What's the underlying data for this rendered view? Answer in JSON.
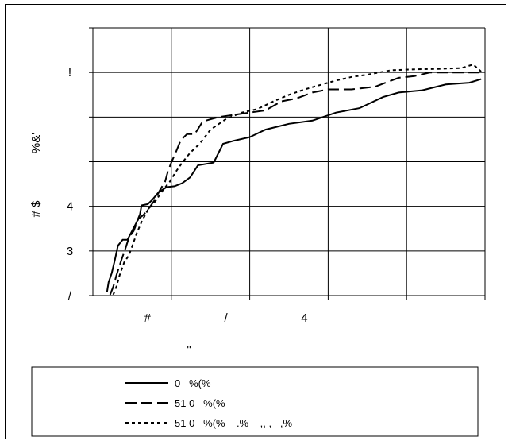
{
  "chart_data": {
    "type": "line",
    "title": "",
    "xlabel": "\"",
    "ylabel": "# $",
    "ylabel_secondary": "%&'",
    "x_ticks": [
      {
        "value": 1,
        "label": "#"
      },
      {
        "value": 2,
        "label": "/"
      },
      {
        "value": 3,
        "label": "4"
      },
      {
        "value": 4,
        "label": ""
      },
      {
        "value": 5,
        "label": ""
      }
    ],
    "y_ticks": [
      {
        "value": 0,
        "label": "/"
      },
      {
        "value": 1,
        "label": "3"
      },
      {
        "value": 2,
        "label": "4"
      },
      {
        "value": 3,
        "label": ""
      },
      {
        "value": 4,
        "label": ""
      },
      {
        "value": 5,
        "label": "!"
      },
      {
        "value": 6,
        "label": ""
      }
    ],
    "xlim": [
      0,
      5
    ],
    "ylim": [
      0,
      6
    ],
    "grid": true,
    "legend_position": "bottom",
    "series": [
      {
        "name": "0   %(%",
        "style": "solid",
        "color": "#000000",
        "points": [
          [
            0.18,
            0.08
          ],
          [
            0.2,
            0.3
          ],
          [
            0.24,
            0.5
          ],
          [
            0.28,
            0.8
          ],
          [
            0.32,
            1.12
          ],
          [
            0.38,
            1.25
          ],
          [
            0.44,
            1.25
          ],
          [
            0.5,
            1.45
          ],
          [
            0.56,
            1.65
          ],
          [
            0.6,
            1.82
          ],
          [
            0.62,
            2.02
          ],
          [
            0.7,
            2.05
          ],
          [
            0.76,
            2.15
          ],
          [
            0.84,
            2.32
          ],
          [
            0.94,
            2.43
          ],
          [
            1.04,
            2.45
          ],
          [
            1.14,
            2.52
          ],
          [
            1.24,
            2.65
          ],
          [
            1.34,
            2.92
          ],
          [
            1.44,
            2.95
          ],
          [
            1.54,
            2.98
          ],
          [
            1.66,
            3.4
          ],
          [
            1.8,
            3.47
          ],
          [
            2.0,
            3.55
          ],
          [
            2.2,
            3.72
          ],
          [
            2.5,
            3.85
          ],
          [
            2.8,
            3.92
          ],
          [
            3.1,
            4.1
          ],
          [
            3.4,
            4.2
          ],
          [
            3.7,
            4.45
          ],
          [
            3.9,
            4.55
          ],
          [
            4.2,
            4.6
          ],
          [
            4.5,
            4.73
          ],
          [
            4.8,
            4.77
          ],
          [
            4.95,
            4.85
          ]
        ]
      },
      {
        "name": "51 0   %(%",
        "style": "dashed",
        "color": "#000000",
        "points": [
          [
            0.22,
            0.02
          ],
          [
            0.26,
            0.2
          ],
          [
            0.3,
            0.45
          ],
          [
            0.36,
            0.78
          ],
          [
            0.42,
            1.08
          ],
          [
            0.46,
            1.3
          ],
          [
            0.52,
            1.45
          ],
          [
            0.58,
            1.72
          ],
          [
            0.64,
            1.8
          ],
          [
            0.7,
            1.92
          ],
          [
            0.78,
            2.12
          ],
          [
            0.86,
            2.38
          ],
          [
            0.92,
            2.55
          ],
          [
            0.96,
            2.8
          ],
          [
            1.0,
            2.98
          ],
          [
            1.06,
            3.22
          ],
          [
            1.12,
            3.48
          ],
          [
            1.2,
            3.62
          ],
          [
            1.3,
            3.62
          ],
          [
            1.4,
            3.9
          ],
          [
            1.6,
            4.0
          ],
          [
            1.8,
            4.05
          ],
          [
            2.0,
            4.1
          ],
          [
            2.2,
            4.15
          ],
          [
            2.4,
            4.35
          ],
          [
            2.6,
            4.42
          ],
          [
            2.8,
            4.55
          ],
          [
            3.0,
            4.62
          ],
          [
            3.3,
            4.62
          ],
          [
            3.6,
            4.68
          ],
          [
            3.9,
            4.88
          ],
          [
            4.1,
            4.92
          ],
          [
            4.3,
            5.0
          ],
          [
            4.6,
            5.0
          ],
          [
            4.95,
            5.0
          ]
        ]
      },
      {
        "name": "51 0   %(%    .%    ,, ,   ,%",
        "style": "dotted",
        "color": "#000000",
        "points": [
          [
            0.26,
            0.02
          ],
          [
            0.3,
            0.2
          ],
          [
            0.34,
            0.45
          ],
          [
            0.4,
            0.75
          ],
          [
            0.46,
            0.9
          ],
          [
            0.5,
            1.1
          ],
          [
            0.56,
            1.4
          ],
          [
            0.62,
            1.65
          ],
          [
            0.7,
            1.92
          ],
          [
            0.8,
            2.12
          ],
          [
            0.9,
            2.38
          ],
          [
            0.98,
            2.55
          ],
          [
            1.06,
            2.78
          ],
          [
            1.14,
            2.98
          ],
          [
            1.24,
            3.2
          ],
          [
            1.36,
            3.4
          ],
          [
            1.5,
            3.72
          ],
          [
            1.7,
            3.96
          ],
          [
            1.9,
            4.1
          ],
          [
            2.1,
            4.18
          ],
          [
            2.3,
            4.35
          ],
          [
            2.5,
            4.5
          ],
          [
            2.7,
            4.62
          ],
          [
            2.9,
            4.72
          ],
          [
            3.1,
            4.82
          ],
          [
            3.3,
            4.9
          ],
          [
            3.5,
            4.95
          ],
          [
            3.8,
            5.05
          ],
          [
            4.1,
            5.07
          ],
          [
            4.4,
            5.08
          ],
          [
            4.7,
            5.1
          ],
          [
            4.85,
            5.18
          ],
          [
            4.95,
            5.02
          ]
        ]
      }
    ]
  }
}
